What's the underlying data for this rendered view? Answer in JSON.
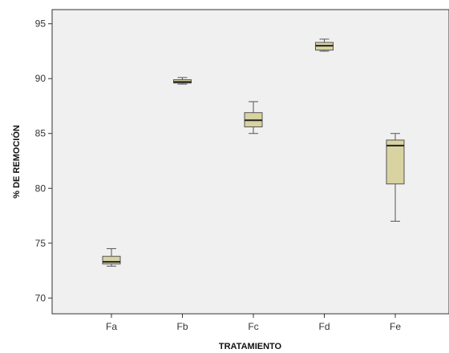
{
  "chart_data": {
    "type": "boxplot",
    "title": "",
    "xlabel": "TRATAMIENTO",
    "ylabel": "% DE REMOCIÓN",
    "ylim": [
      69,
      96
    ],
    "yticks": [
      70,
      75,
      80,
      85,
      90,
      95
    ],
    "grid": false,
    "colors": {
      "plot_background": "#f0f0f0",
      "box_fill": "#d8d3a0",
      "box_stroke": "#555555",
      "median": "#222222"
    },
    "categories": [
      "Fa",
      "Fb",
      "Fc",
      "Fd",
      "Fe"
    ],
    "boxes": [
      {
        "category": "Fa",
        "min": 72.9,
        "q1": 73.1,
        "median": 73.3,
        "q3": 73.8,
        "max": 74.5
      },
      {
        "category": "Fb",
        "min": 89.5,
        "q1": 89.6,
        "median": 89.7,
        "q3": 89.9,
        "max": 90.1
      },
      {
        "category": "Fc",
        "min": 85.0,
        "q1": 85.6,
        "median": 86.2,
        "q3": 86.9,
        "max": 87.9
      },
      {
        "category": "Fd",
        "min": 92.5,
        "q1": 92.6,
        "median": 93.0,
        "q3": 93.3,
        "max": 93.6
      },
      {
        "category": "Fe",
        "min": 77.0,
        "q1": 80.4,
        "median": 83.9,
        "q3": 84.4,
        "max": 85.0
      }
    ]
  }
}
